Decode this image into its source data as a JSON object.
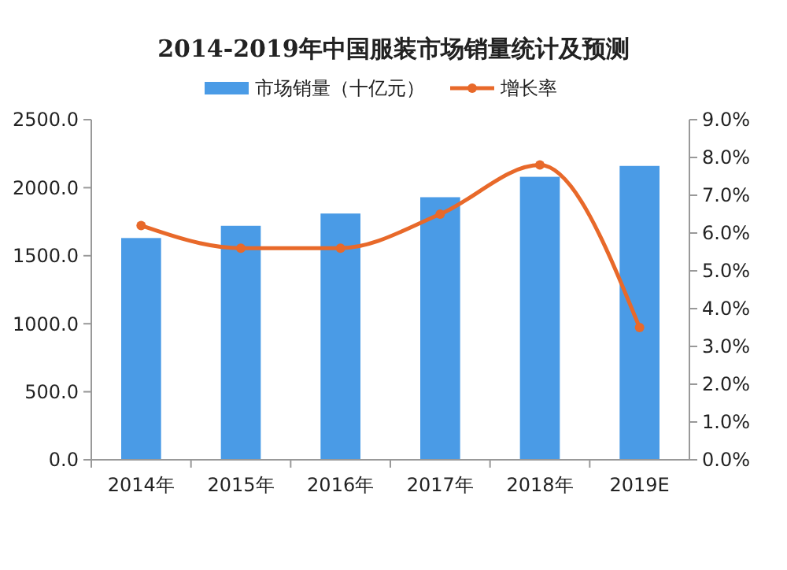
{
  "chart_data": {
    "type": "bar",
    "title": "2014-2019年中国服装市场销量统计及预测",
    "categories": [
      "2014年",
      "2015年",
      "2016年",
      "2017年",
      "2018年",
      "2019E"
    ],
    "series": [
      {
        "name": "市场销量（十亿元）",
        "color": "#4a9be6",
        "values": [
          1630,
          1720,
          1810,
          1930,
          2080,
          2160
        ]
      },
      {
        "name": "增长率",
        "type": "line",
        "axis": "y2",
        "color": "#e8692a",
        "marker": "circle",
        "values": [
          6.2,
          5.6,
          5.6,
          6.5,
          7.8,
          3.5
        ]
      }
    ],
    "ylim": [
      0,
      2500
    ],
    "yticks": [
      {
        "value": 0,
        "label": "0.0"
      },
      {
        "value": 500,
        "label": "500.0"
      },
      {
        "value": 1000,
        "label": "1000.0"
      },
      {
        "value": 1500,
        "label": "1500.0"
      },
      {
        "value": 2000,
        "label": "2000.0"
      },
      {
        "value": 2500,
        "label": "2500.0"
      }
    ],
    "y2lim": [
      0,
      9
    ],
    "y2ticks": [
      {
        "value": 0,
        "label": "0.0%"
      },
      {
        "value": 1,
        "label": "1.0%"
      },
      {
        "value": 2,
        "label": "2.0%"
      },
      {
        "value": 3,
        "label": "3.0%"
      },
      {
        "value": 4,
        "label": "4.0%"
      },
      {
        "value": 5,
        "label": "5.0%"
      },
      {
        "value": 6,
        "label": "6.0%"
      },
      {
        "value": 7,
        "label": "7.0%"
      },
      {
        "value": 8,
        "label": "8.0%"
      },
      {
        "value": 9,
        "label": "9.0%"
      }
    ],
    "legend": "top",
    "grid": false
  }
}
